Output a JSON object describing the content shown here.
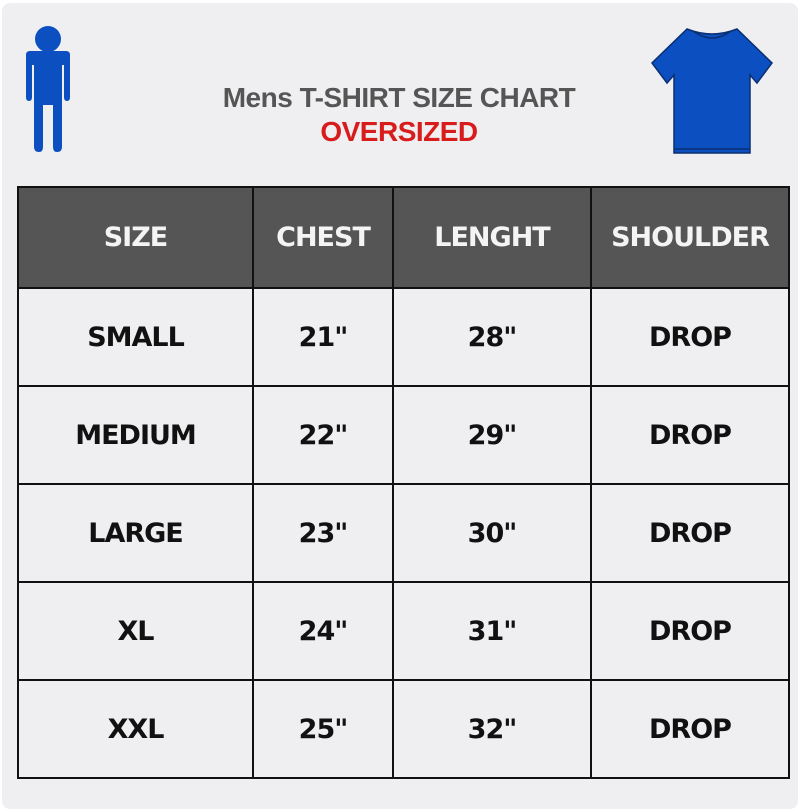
{
  "colors": {
    "accent_blue": "#0b4fc0",
    "accent_red": "#d81c1c",
    "header_bg": "#555555",
    "title_gray": "#555555"
  },
  "icons": {
    "left": "person-icon",
    "right": "tshirt-icon"
  },
  "header": {
    "title": "Mens T-SHIRT SIZE CHART",
    "subtitle": "OVERSIZED"
  },
  "chart_data": {
    "type": "table",
    "columns": [
      "SIZE",
      "CHEST",
      "LENGHT",
      "SHOULDER"
    ],
    "rows": [
      [
        "SMALL",
        "21\"",
        "28\"",
        "DROP"
      ],
      [
        "MEDIUM",
        "22\"",
        "29\"",
        "DROP"
      ],
      [
        "LARGE",
        "23\"",
        "30\"",
        "DROP"
      ],
      [
        "XL",
        "24\"",
        "31\"",
        "DROP"
      ],
      [
        "XXL",
        "25\"",
        "32\"",
        "DROP"
      ]
    ]
  }
}
